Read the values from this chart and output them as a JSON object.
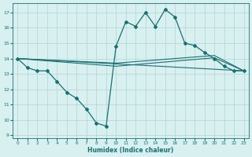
{
  "xlabel": "Humidex (Indice chaleur)",
  "bg_color": "#d8f0f0",
  "grid_color": "#b8d8d8",
  "line_color": "#1a7070",
  "xlim": [
    -0.5,
    23.5
  ],
  "ylim": [
    8.8,
    17.6
  ],
  "yticks": [
    9,
    10,
    11,
    12,
    13,
    14,
    15,
    16,
    17
  ],
  "xticks": [
    0,
    1,
    2,
    3,
    4,
    5,
    6,
    7,
    8,
    9,
    10,
    11,
    12,
    13,
    14,
    15,
    16,
    17,
    18,
    19,
    20,
    21,
    22,
    23
  ],
  "line1_x": [
    0,
    1,
    2,
    3,
    4,
    5,
    6,
    7,
    8,
    9,
    10,
    11,
    12,
    13,
    14,
    15,
    16,
    17,
    18,
    19,
    20,
    21,
    22,
    23
  ],
  "line1_y": [
    14.0,
    13.4,
    13.2,
    13.2,
    12.5,
    11.8,
    11.4,
    10.7,
    9.8,
    9.6,
    14.8,
    16.4,
    16.1,
    17.0,
    16.1,
    17.2,
    16.7,
    15.0,
    14.85,
    14.4,
    14.0,
    13.5,
    13.2,
    13.2
  ],
  "line2_x": [
    0,
    23
  ],
  "line2_y": [
    14.0,
    13.2
  ],
  "line3_x": [
    0,
    10,
    20,
    23
  ],
  "line3_y": [
    14.0,
    13.7,
    14.2,
    13.2
  ],
  "line4_x": [
    0,
    10,
    20,
    23
  ],
  "line4_y": [
    14.0,
    13.5,
    14.05,
    13.2
  ]
}
